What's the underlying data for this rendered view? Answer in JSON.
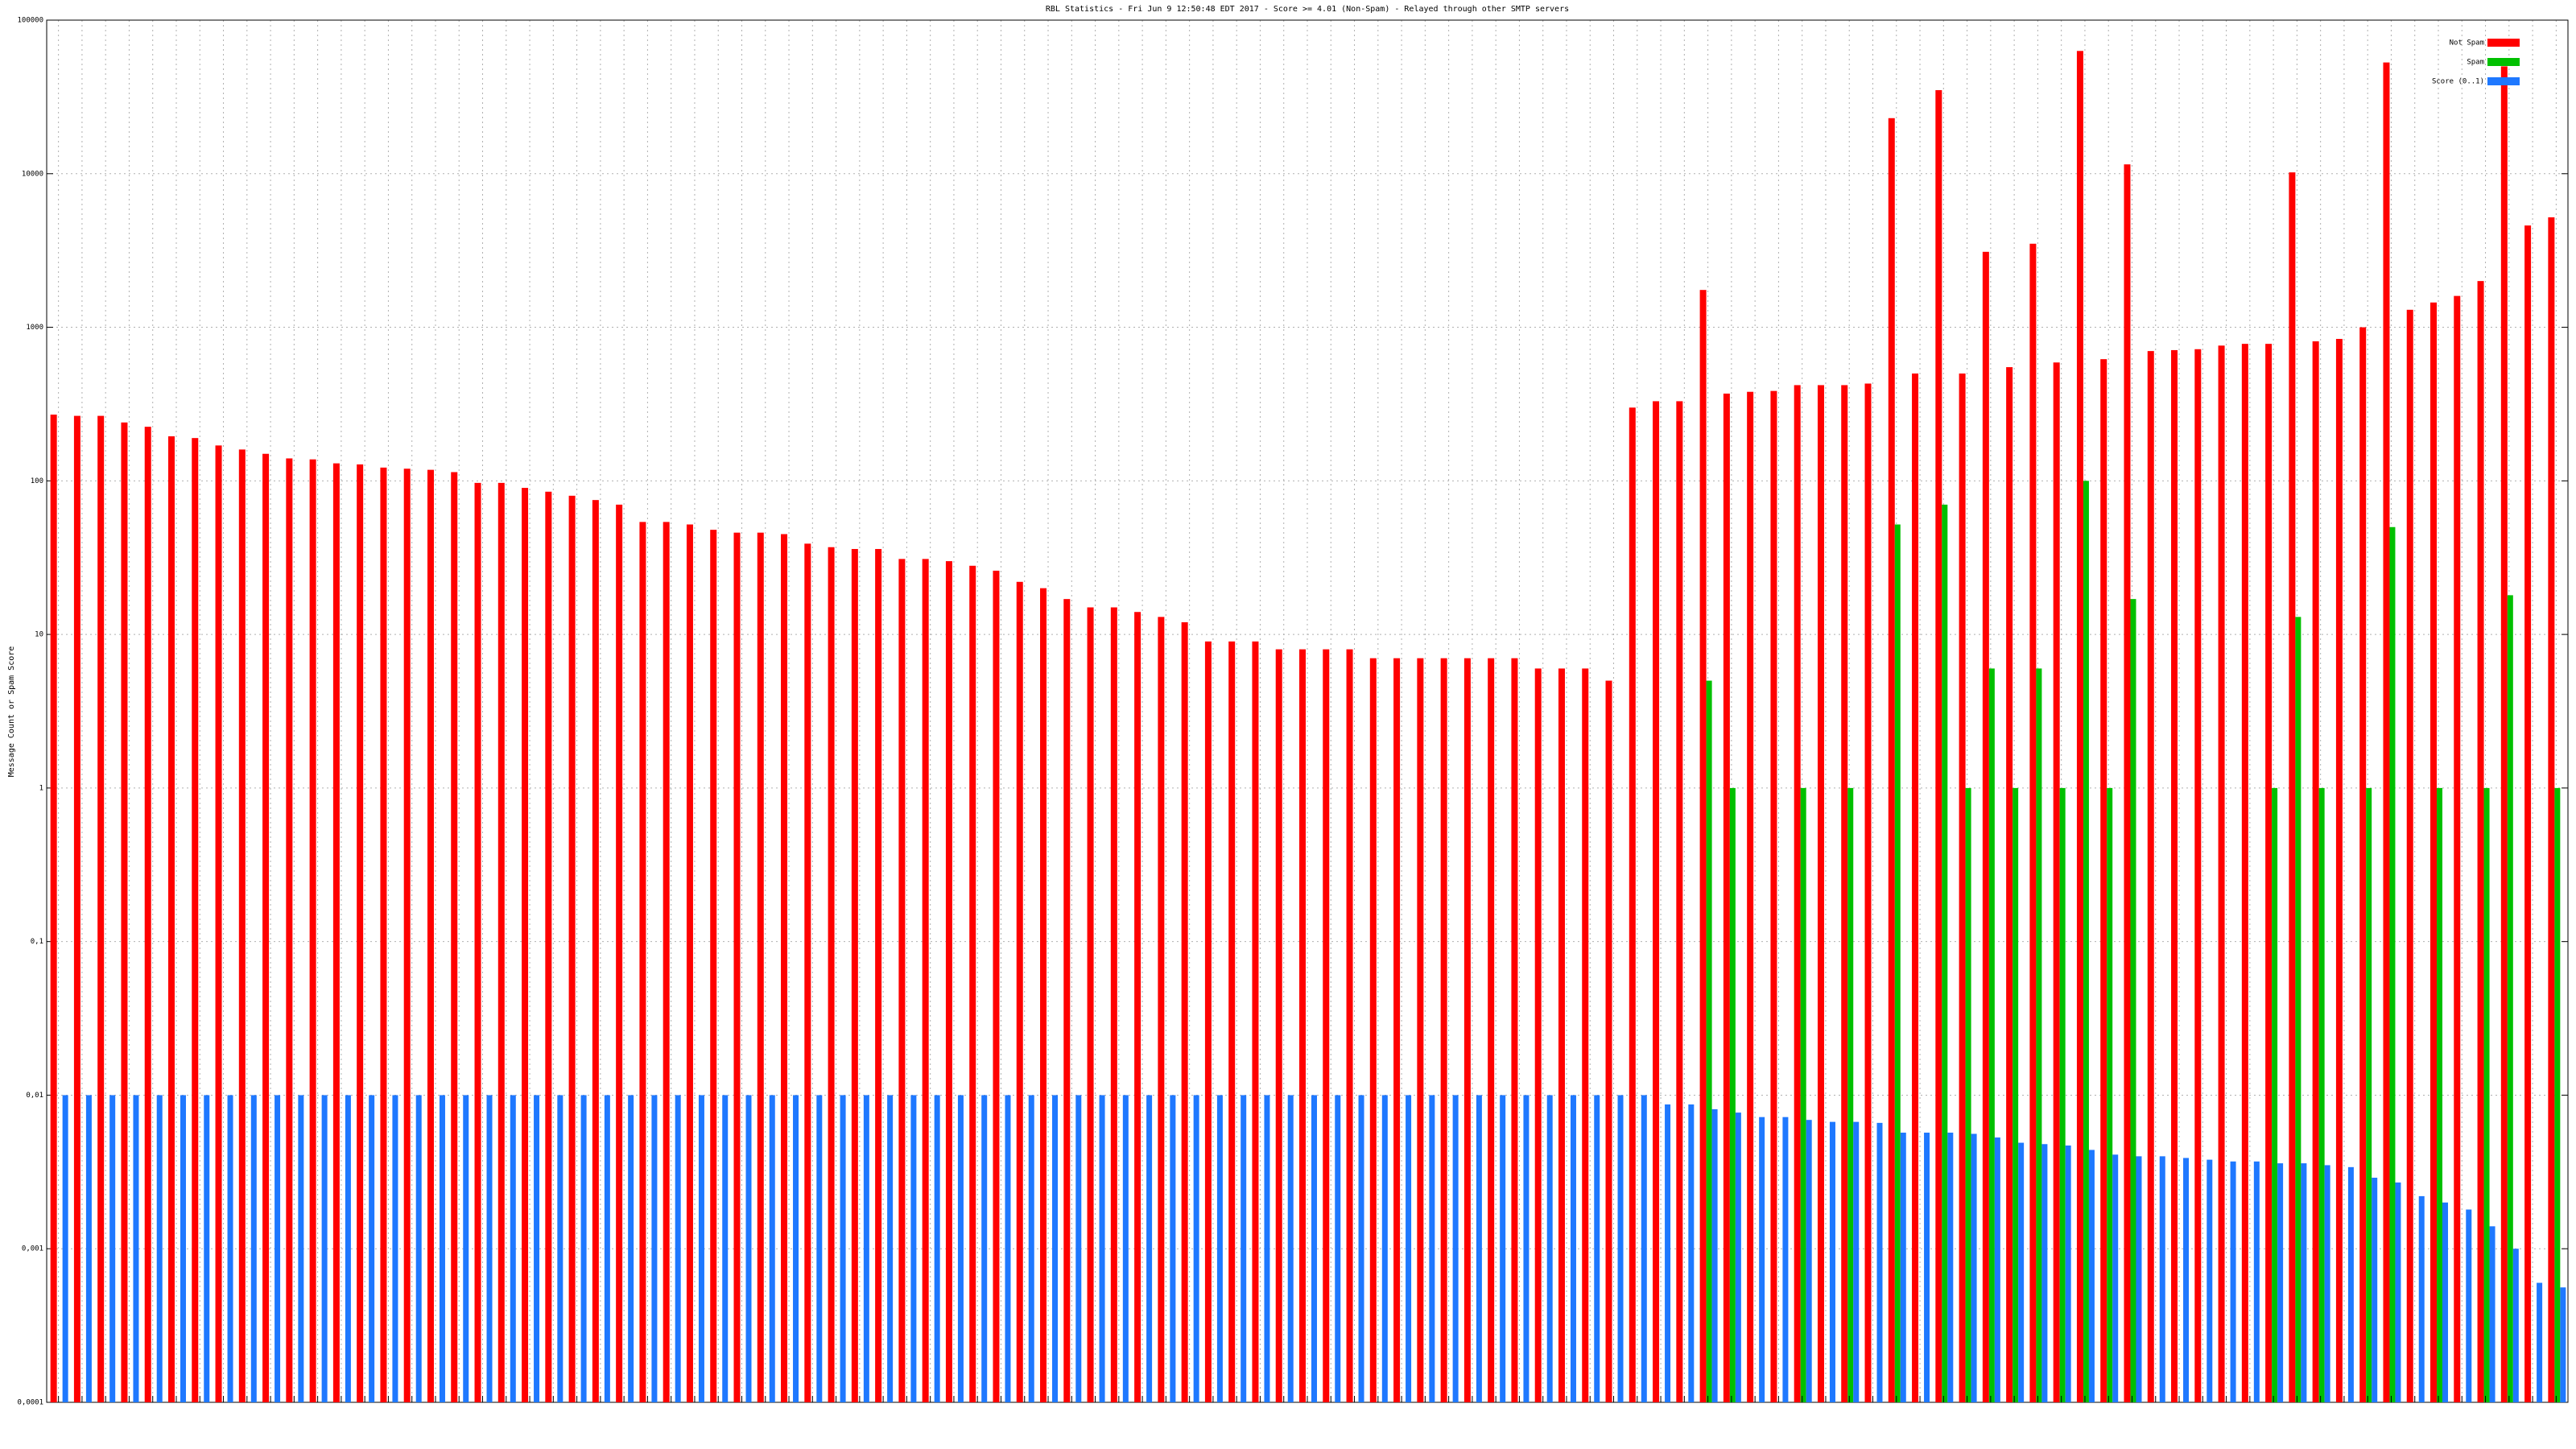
{
  "chart_data": {
    "type": "bar",
    "title": "RBL Statistics - Fri Jun  9 12:50:48 EDT 2017 - Score >= 4.01 (Non-Spam) - Relayed through other SMTP servers",
    "y_label": "Message Count or Spam Score",
    "log_y": true,
    "grid": true,
    "legend": "upper right",
    "ylim": [
      0.0001,
      100000
    ],
    "yticks": [
      {
        "value": 0.0001,
        "label": "0,0001"
      },
      {
        "value": 0.001,
        "label": "0,001"
      },
      {
        "value": 0.01,
        "label": "0,01"
      },
      {
        "value": 0.1,
        "label": "0,1"
      },
      1,
      10,
      100,
      1000,
      10000,
      100000
    ],
    "categories": [
      null,
      null,
      null,
      null,
      null,
      null,
      null,
      null,
      null,
      null,
      null,
      null,
      null,
      null,
      null,
      null,
      null,
      null,
      null,
      null,
      null,
      null,
      null,
      null,
      null,
      null,
      null,
      null,
      null,
      null,
      null,
      null,
      null,
      null,
      null,
      null,
      null,
      null,
      null,
      null,
      null,
      null,
      null,
      null,
      null,
      null,
      null,
      null,
      null,
      null,
      null,
      null,
      null,
      null,
      null,
      null,
      null,
      null,
      null,
      null,
      null,
      null,
      null,
      null,
      null,
      null,
      null,
      null,
      null,
      null,
      null,
      null,
      null,
      null,
      null,
      null,
      null,
      null,
      null,
      null,
      null,
      null,
      null,
      null,
      null,
      null,
      null,
      null,
      null,
      null,
      null,
      null,
      null,
      null,
      null,
      null,
      null,
      null,
      null,
      null,
      null,
      null,
      null,
      null,
      null,
      null,
      null
    ],
    "series": [
      {
        "name": "Not Spam",
        "color": "#ff0000",
        "values": [
          270,
          265,
          265,
          240,
          225,
          195,
          190,
          170,
          160,
          150,
          140,
          138,
          130,
          128,
          122,
          120,
          118,
          114,
          97,
          97,
          90,
          85,
          80,
          75,
          70,
          54,
          54,
          52,
          48,
          46,
          46,
          45,
          39,
          37,
          36,
          36,
          31,
          31,
          30,
          28,
          26,
          22,
          20,
          17,
          15,
          15,
          14,
          13,
          12,
          9,
          9,
          9,
          8,
          8,
          8,
          8,
          7,
          7,
          7,
          7,
          7,
          7,
          7,
          6,
          6,
          6,
          5,
          300,
          330,
          330,
          1750,
          370,
          380,
          385,
          420,
          420,
          420,
          430,
          23000,
          500,
          35000,
          500,
          3100,
          550,
          3500,
          590,
          63000,
          620,
          11500,
          700,
          710,
          720,
          760,
          780,
          780,
          10200,
          810,
          840,
          1000,
          53000,
          1300,
          1450,
          1600,
          2000,
          50000,
          4600,
          5200
        ]
      },
      {
        "name": "Spam",
        "color": "#00c000",
        "values": [
          null,
          null,
          null,
          null,
          null,
          null,
          null,
          null,
          null,
          null,
          null,
          null,
          null,
          null,
          null,
          null,
          null,
          null,
          null,
          null,
          null,
          null,
          null,
          null,
          null,
          null,
          null,
          null,
          null,
          null,
          null,
          null,
          null,
          null,
          null,
          null,
          null,
          null,
          null,
          null,
          null,
          null,
          null,
          null,
          null,
          null,
          null,
          null,
          null,
          null,
          null,
          null,
          null,
          null,
          null,
          null,
          null,
          null,
          null,
          null,
          null,
          null,
          null,
          null,
          null,
          null,
          null,
          null,
          null,
          null,
          5,
          1,
          null,
          null,
          1,
          null,
          1,
          null,
          52,
          null,
          70,
          1,
          6,
          1,
          6,
          1,
          100,
          1,
          17,
          null,
          null,
          null,
          null,
          null,
          1,
          13,
          1,
          null,
          1,
          50,
          null,
          1,
          null,
          1,
          18,
          null,
          1
        ]
      },
      {
        "name": "Score (0..1)",
        "color": "#1e78ff",
        "values": [
          0.01,
          0.01,
          0.01,
          0.01,
          0.01,
          0.01,
          0.01,
          0.01,
          0.01,
          0.01,
          0.01,
          0.01,
          0.01,
          0.01,
          0.01,
          0.01,
          0.01,
          0.01,
          0.01,
          0.01,
          0.01,
          0.01,
          0.01,
          0.01,
          0.01,
          0.01,
          0.01,
          0.01,
          0.01,
          0.01,
          0.01,
          0.01,
          0.01,
          0.01,
          0.01,
          0.01,
          0.01,
          0.01,
          0.01,
          0.01,
          0.01,
          0.01,
          0.01,
          0.01,
          0.01,
          0.01,
          0.01,
          0.01,
          0.01,
          0.01,
          0.01,
          0.01,
          0.01,
          0.01,
          0.01,
          0.01,
          0.01,
          0.01,
          0.01,
          0.01,
          0.01,
          0.01,
          0.01,
          0.01,
          0.01,
          0.01,
          0.01,
          0.01,
          0.0087,
          0.0087,
          0.0081,
          0.0077,
          0.0072,
          0.0072,
          0.0069,
          0.0067,
          0.0067,
          0.0066,
          0.0057,
          0.0057,
          0.0057,
          0.0056,
          0.0053,
          0.0049,
          0.0048,
          0.0047,
          0.0044,
          0.0041,
          0.004,
          0.004,
          0.0039,
          0.0038,
          0.0037,
          0.0037,
          0.0036,
          0.0036,
          0.0035,
          0.0034,
          0.0029,
          0.0027,
          0.0022,
          0.002,
          0.0018,
          0.0014,
          0.001,
          0.0006,
          0.00056
        ]
      }
    ]
  }
}
